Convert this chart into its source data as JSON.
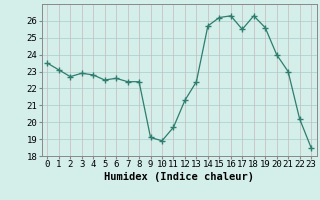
{
  "x": [
    0,
    1,
    2,
    3,
    4,
    5,
    6,
    7,
    8,
    9,
    10,
    11,
    12,
    13,
    14,
    15,
    16,
    17,
    18,
    19,
    20,
    21,
    22,
    23
  ],
  "y": [
    23.5,
    23.1,
    22.7,
    22.9,
    22.8,
    22.5,
    22.6,
    22.4,
    22.4,
    19.1,
    18.9,
    19.7,
    21.3,
    22.4,
    25.7,
    26.2,
    26.3,
    25.5,
    26.3,
    25.6,
    24.0,
    23.0,
    20.2,
    18.5
  ],
  "line_color": "#2e7d6e",
  "marker": "+",
  "marker_size": 4,
  "bg_color": "#d4eeea",
  "grid_color_x": "#c8b8b8",
  "grid_color_y": "#a8ccc8",
  "xlabel": "Humidex (Indice chaleur)",
  "xlim": [
    -0.5,
    23.5
  ],
  "ylim": [
    18,
    27
  ],
  "yticks": [
    18,
    19,
    20,
    21,
    22,
    23,
    24,
    25,
    26
  ],
  "xticks": [
    0,
    1,
    2,
    3,
    4,
    5,
    6,
    7,
    8,
    9,
    10,
    11,
    12,
    13,
    14,
    15,
    16,
    17,
    18,
    19,
    20,
    21,
    22,
    23
  ],
  "tick_fontsize": 6.5,
  "xlabel_fontsize": 7.5
}
